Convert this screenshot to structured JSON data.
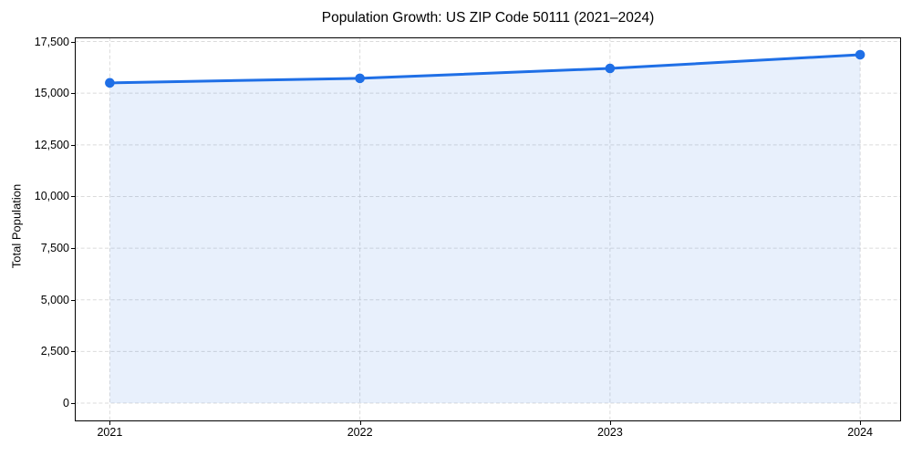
{
  "chart_data": {
    "type": "area",
    "title": "Population Growth: US ZIP Code 50111 (2021–2024)",
    "xlabel": "",
    "ylabel": "Total Population",
    "x": [
      2021,
      2022,
      2023,
      2024
    ],
    "values": [
      15500,
      15720,
      16200,
      16860
    ],
    "xticks": [
      2021,
      2022,
      2023,
      2024
    ],
    "yticks": [
      0,
      2500,
      5000,
      7500,
      10000,
      12500,
      15000,
      17500
    ],
    "xlim": [
      2020.86,
      2024.16
    ],
    "ylim": [
      -880,
      17700
    ],
    "grid": true,
    "grid_style": "dashed",
    "legend": false,
    "fill_baseline": 0,
    "colors": {
      "line": "#1f6fe6",
      "marker": "#1f6fe6",
      "fill": "rgba(31,111,230,0.10)",
      "grid": "#cfcfcf",
      "spine": "#000000",
      "text": "#000000",
      "background": "#ffffff"
    }
  }
}
